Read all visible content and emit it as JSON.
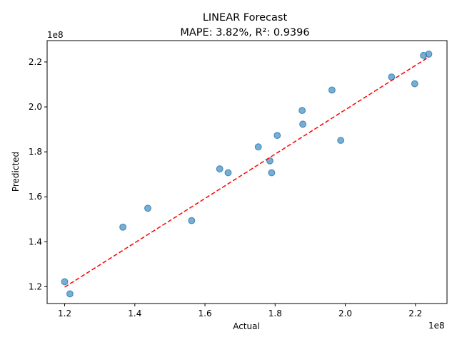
{
  "chart_data": {
    "type": "scatter",
    "title": "LINEAR Forecast",
    "subtitle": "MAPE: 3.82%, R²: 0.9396",
    "xlabel": "Actual",
    "ylabel": "Predicted",
    "x_offset_label": "1e8",
    "y_offset_label": "1e8",
    "xlim": [
      1.15,
      2.29
    ],
    "ylim": [
      1.125,
      2.295
    ],
    "x_ticks": [
      1.2,
      1.4,
      1.6,
      1.8,
      2.0,
      2.2
    ],
    "x_tick_labels": [
      "1.2",
      "1.4",
      "1.6",
      "1.8",
      "2.0",
      "2.2"
    ],
    "y_ticks": [
      1.2,
      1.4,
      1.6,
      1.8,
      2.0,
      2.2
    ],
    "y_tick_labels": [
      "1.2",
      "1.4",
      "1.6",
      "1.8",
      "2.0",
      "2.2"
    ],
    "grid": false,
    "point_color": "#1f77b4",
    "line_color": "#ff0000",
    "points": [
      {
        "x": 1.2,
        "y": 1.222
      },
      {
        "x": 1.215,
        "y": 1.168
      },
      {
        "x": 1.366,
        "y": 1.465
      },
      {
        "x": 1.437,
        "y": 1.549
      },
      {
        "x": 1.562,
        "y": 1.494
      },
      {
        "x": 1.642,
        "y": 1.724
      },
      {
        "x": 1.666,
        "y": 1.707
      },
      {
        "x": 1.752,
        "y": 1.822
      },
      {
        "x": 1.785,
        "y": 1.76
      },
      {
        "x": 1.79,
        "y": 1.707
      },
      {
        "x": 1.806,
        "y": 1.873
      },
      {
        "x": 1.877,
        "y": 1.984
      },
      {
        "x": 1.879,
        "y": 1.923
      },
      {
        "x": 1.962,
        "y": 2.075
      },
      {
        "x": 1.987,
        "y": 1.851
      },
      {
        "x": 2.132,
        "y": 2.133
      },
      {
        "x": 2.198,
        "y": 2.103
      },
      {
        "x": 2.223,
        "y": 2.229
      },
      {
        "x": 2.238,
        "y": 2.235
      }
    ],
    "fit_line": {
      "x": [
        1.2,
        2.238
      ],
      "y": [
        1.198,
        2.222
      ]
    }
  }
}
